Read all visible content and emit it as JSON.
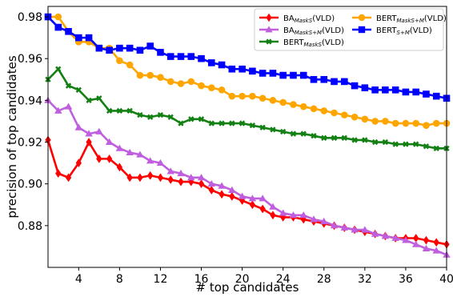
{
  "chart_data": {
    "type": "line",
    "xlabel": "# top candidates",
    "ylabel": "precision of top candidates",
    "xlim": [
      1,
      40
    ],
    "ylim": [
      0.86,
      0.985
    ],
    "xticks": [
      4,
      8,
      12,
      16,
      20,
      24,
      28,
      32,
      36,
      40
    ],
    "yticks": [
      0.88,
      0.9,
      0.92,
      0.94,
      0.96,
      0.98
    ],
    "ytick_labels": [
      "0.88",
      "0.90",
      "0.92",
      "0.94",
      "0.96",
      "0.98"
    ],
    "grid": false,
    "legend_position": "top-right",
    "x": [
      1,
      2,
      3,
      4,
      5,
      6,
      7,
      8,
      9,
      10,
      11,
      12,
      13,
      14,
      15,
      16,
      17,
      18,
      19,
      20,
      21,
      22,
      23,
      24,
      25,
      26,
      27,
      28,
      29,
      30,
      31,
      32,
      33,
      34,
      35,
      36,
      37,
      38,
      39,
      40
    ],
    "series": [
      {
        "name_base": "BA",
        "name_sub": "MaskS",
        "name_suffix": "(VLD)",
        "color": "#ff0000",
        "marker": "diamond",
        "values": [
          0.921,
          0.905,
          0.903,
          0.91,
          0.92,
          0.912,
          0.912,
          0.908,
          0.903,
          0.903,
          0.904,
          0.903,
          0.902,
          0.901,
          0.901,
          0.9,
          0.897,
          0.895,
          0.894,
          0.892,
          0.89,
          0.888,
          0.885,
          0.884,
          0.884,
          0.883,
          0.882,
          0.881,
          0.88,
          0.879,
          0.878,
          0.877,
          0.876,
          0.875,
          0.874,
          0.874,
          0.874,
          0.873,
          0.872,
          0.871
        ]
      },
      {
        "name_base": "BA",
        "name_sub": "MaskS+M",
        "name_suffix": "(VLD)",
        "color": "#bf5fdf",
        "marker": "triangle",
        "values": [
          0.94,
          0.935,
          0.937,
          0.927,
          0.924,
          0.925,
          0.92,
          0.917,
          0.915,
          0.914,
          0.911,
          0.91,
          0.906,
          0.905,
          0.903,
          0.903,
          0.9,
          0.899,
          0.897,
          0.894,
          0.893,
          0.893,
          0.889,
          0.886,
          0.885,
          0.885,
          0.883,
          0.882,
          0.88,
          0.879,
          0.878,
          0.878,
          0.876,
          0.875,
          0.874,
          0.873,
          0.871,
          0.869,
          0.868,
          0.866
        ]
      },
      {
        "name_base": "BERT",
        "name_sub": "MaskS",
        "name_suffix": "(VLD)",
        "color": "#138013",
        "marker": "x",
        "values": [
          0.95,
          0.955,
          0.947,
          0.945,
          0.94,
          0.941,
          0.935,
          0.935,
          0.935,
          0.933,
          0.932,
          0.933,
          0.932,
          0.929,
          0.931,
          0.931,
          0.929,
          0.929,
          0.929,
          0.929,
          0.928,
          0.927,
          0.926,
          0.925,
          0.924,
          0.924,
          0.923,
          0.922,
          0.922,
          0.922,
          0.921,
          0.921,
          0.92,
          0.92,
          0.919,
          0.919,
          0.919,
          0.918,
          0.917,
          0.917
        ]
      },
      {
        "name_base": "BERT",
        "name_sub": "MaskS+M",
        "name_suffix": "(VLD)",
        "color": "#ffa500",
        "marker": "circle",
        "values": [
          0.98,
          0.98,
          0.973,
          0.968,
          0.968,
          0.965,
          0.965,
          0.959,
          0.957,
          0.952,
          0.952,
          0.951,
          0.949,
          0.948,
          0.949,
          0.947,
          0.946,
          0.945,
          0.942,
          0.942,
          0.942,
          0.941,
          0.94,
          0.939,
          0.938,
          0.937,
          0.936,
          0.935,
          0.934,
          0.933,
          0.932,
          0.931,
          0.93,
          0.93,
          0.929,
          0.929,
          0.929,
          0.928,
          0.929,
          0.929
        ]
      },
      {
        "name_base": "BERT",
        "name_sub": "S+M",
        "name_suffix": "(VLD)",
        "color": "#0000ff",
        "marker": "square",
        "values": [
          0.98,
          0.975,
          0.973,
          0.97,
          0.97,
          0.965,
          0.964,
          0.965,
          0.965,
          0.964,
          0.966,
          0.963,
          0.961,
          0.961,
          0.961,
          0.96,
          0.958,
          0.957,
          0.955,
          0.955,
          0.954,
          0.953,
          0.953,
          0.952,
          0.952,
          0.952,
          0.95,
          0.95,
          0.949,
          0.949,
          0.947,
          0.946,
          0.945,
          0.945,
          0.945,
          0.944,
          0.944,
          0.943,
          0.942,
          0.941
        ]
      }
    ]
  }
}
